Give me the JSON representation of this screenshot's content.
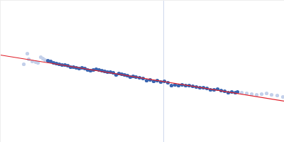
{
  "chart_data": {
    "type": "scatter",
    "xlim": [
      0,
      400
    ],
    "ylim": [
      0,
      200
    ],
    "xticks": [],
    "yticks": [],
    "tick_labels": false,
    "grid": false,
    "series": [
      {
        "type": "line",
        "color": "#d3dbee",
        "x": [
          230,
          230
        ],
        "values": [
          0,
          200
        ]
      },
      {
        "type": "scatter",
        "marker": "circle",
        "color": "#c3d0ea",
        "x": [
          33,
          38,
          40,
          45,
          50,
          53,
          57,
          60,
          63,
          340,
          347,
          354,
          361,
          368,
          375,
          382,
          390,
          398
        ],
        "values": [
          110,
          125,
          117,
          114,
          113,
          112,
          120,
          118,
          116,
          70,
          69,
          68,
          67,
          68,
          69,
          67,
          66,
          64
        ]
      },
      {
        "type": "scatter",
        "marker": "circle",
        "color": "#3a64b0",
        "x": [
          67,
          71,
          75,
          79,
          83,
          87,
          91,
          95,
          99,
          103,
          107,
          111,
          115,
          119,
          123,
          127,
          131,
          135,
          139,
          143,
          147,
          151,
          155,
          159,
          163,
          167,
          171,
          175,
          179,
          183,
          187,
          191,
          196,
          201,
          206,
          211,
          216,
          221,
          226,
          231,
          236,
          241,
          246,
          251,
          256,
          261,
          266,
          271,
          276,
          281,
          286,
          291,
          296,
          301,
          306,
          311,
          316,
          321,
          326,
          331,
          334
        ],
        "values": [
          115,
          114,
          112,
          111,
          110,
          109,
          109,
          108,
          106,
          106,
          105,
          104,
          105,
          104,
          102,
          101,
          102,
          103,
          102,
          101,
          100,
          99,
          99,
          98,
          95,
          97,
          96,
          95,
          94,
          92,
          93,
          92,
          91,
          90,
          87,
          88,
          86,
          87,
          85,
          86,
          84,
          80,
          81,
          80,
          81,
          80,
          80,
          79,
          78,
          77,
          77,
          76,
          74,
          74,
          75,
          73,
          72,
          70,
          71,
          70,
          71
        ]
      },
      {
        "type": "line",
        "color": "#e0202a",
        "x": [
          0,
          400
        ],
        "values": [
          123,
          58
        ]
      }
    ]
  }
}
